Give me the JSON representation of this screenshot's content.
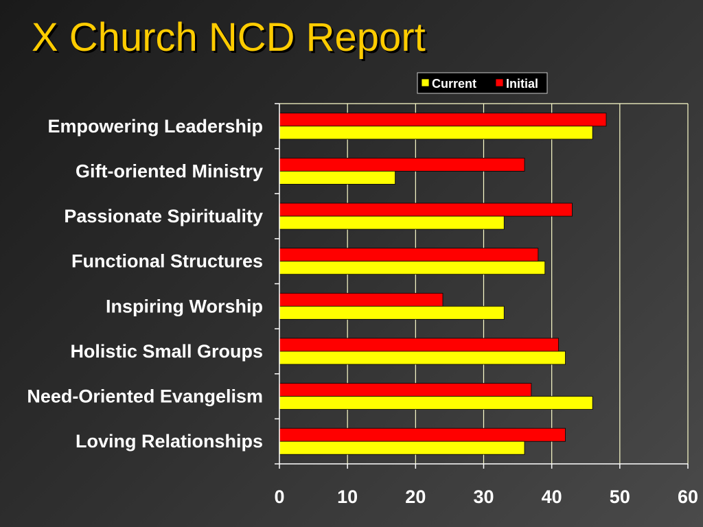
{
  "slide": {
    "title": "X Church NCD Report",
    "title_color": "#ffcc00"
  },
  "chart_data": {
    "type": "bar",
    "orientation": "horizontal",
    "title": "",
    "xlabel": "",
    "ylabel": "",
    "categories": [
      "Empowering Leadership",
      "Gift-oriented Ministry",
      "Passionate Spirituality",
      "Functional Structures",
      "Inspiring Worship",
      "Holistic Small Groups",
      "Need-Oriented Evangelism",
      "Loving Relationships"
    ],
    "series": [
      {
        "name": "Initial",
        "color": "#ff0000",
        "values": [
          48,
          36,
          43,
          38,
          24,
          41,
          37,
          42
        ]
      },
      {
        "name": "Current",
        "color": "#ffff00",
        "values": [
          46,
          17,
          33,
          39,
          33,
          42,
          46,
          36
        ]
      }
    ],
    "legend_order": [
      "Current",
      "Initial"
    ],
    "legend_position": "top-right",
    "xlim": [
      0,
      60
    ],
    "xticks": [
      "0",
      "10",
      "20",
      "30",
      "40",
      "50",
      "60"
    ],
    "grid": "vertical",
    "grid_color": "#ffffcc"
  }
}
